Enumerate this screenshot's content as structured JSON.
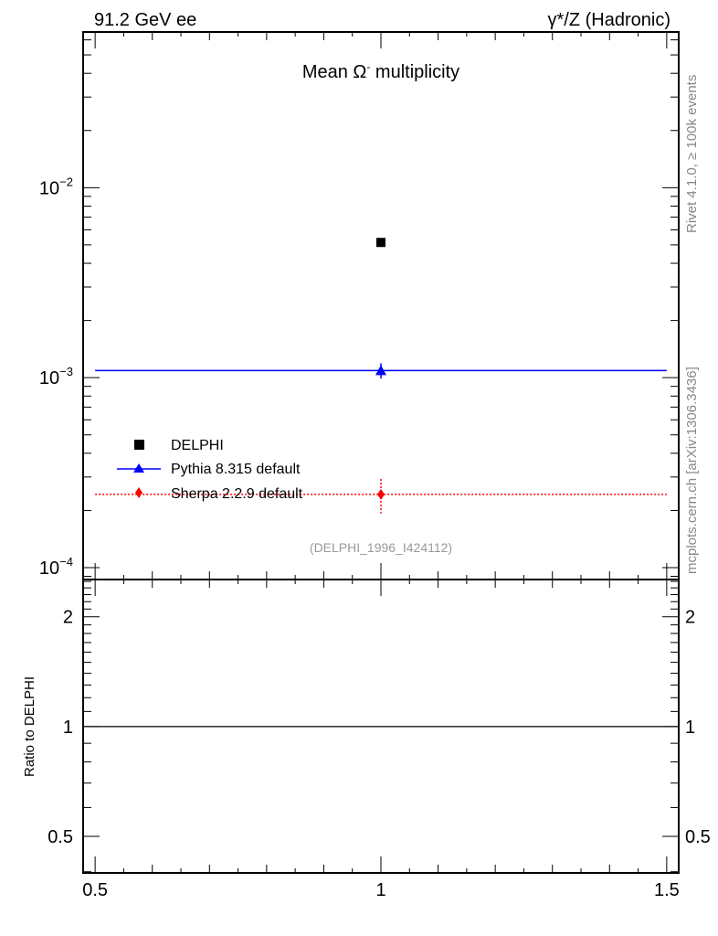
{
  "header": {
    "left": "91.2 GeV ee",
    "right": "γ*/Z (Hadronic)",
    "side_top": "Rivet 4.1.0, ≥ 100k events",
    "side_bottom": "mcplots.cern.ch [arXiv:1306.3436]"
  },
  "chart_data": [
    {
      "type": "scatter",
      "title": "Mean Ω⁻ multiplicity",
      "title_main": "Mean Ω",
      "title_sup": "-",
      "title_tail": " multiplicity",
      "annotation": "(DELPHI_1996_I424112)",
      "xlabel": "",
      "ylabel": "",
      "xlim": [
        0.479,
        1.521
      ],
      "ylim": [
        8.66e-05,
        0.066
      ],
      "yscale": "log",
      "yticks": [
        {
          "v": 0.01,
          "base": "10",
          "exp": "−2"
        },
        {
          "v": 0.001,
          "base": "10",
          "exp": "−3"
        },
        {
          "v": 0.0001,
          "base": "10",
          "exp": "−4"
        }
      ],
      "legend_position": "center-left",
      "series": [
        {
          "name": "DELPHI",
          "color": "#000000",
          "marker": "square",
          "x": [
            1.0
          ],
          "y": [
            0.00515
          ],
          "xerr": [
            0
          ],
          "yerr_lo": [
            0
          ],
          "yerr_hi": [
            0
          ]
        },
        {
          "name": "Pythia 8.315 default",
          "color": "#0000ff",
          "marker": "triangle",
          "line": "solid",
          "x": [
            1.0
          ],
          "y": [
            0.00109
          ],
          "xerr": [
            0.5
          ],
          "yerr_lo": [
            0.0001
          ],
          "yerr_hi": [
            0.0001
          ]
        },
        {
          "name": "Sherpa 2.2.9 default",
          "color": "#ff0000",
          "marker": "diamond",
          "line": "dotted",
          "x": [
            1.0
          ],
          "y": [
            0.000243
          ],
          "xerr": [
            0.5
          ],
          "yerr_lo": [
            5e-05
          ],
          "yerr_hi": [
            5e-05
          ]
        }
      ]
    },
    {
      "type": "line",
      "ylabel": "Ratio to DELPHI",
      "xlim": [
        0.479,
        1.521
      ],
      "ylim": [
        0.397,
        2.53
      ],
      "yscale": "log",
      "yticks": [
        {
          "v": 2,
          "label": "2"
        },
        {
          "v": 1,
          "label": "1"
        },
        {
          "v": 0.5,
          "label": "0.5"
        }
      ],
      "xticks": [
        {
          "v": 0.5,
          "label": "0.5"
        },
        {
          "v": 1,
          "label": "1"
        },
        {
          "v": 1.5,
          "label": "1.5"
        }
      ],
      "reference_line": 1
    }
  ]
}
